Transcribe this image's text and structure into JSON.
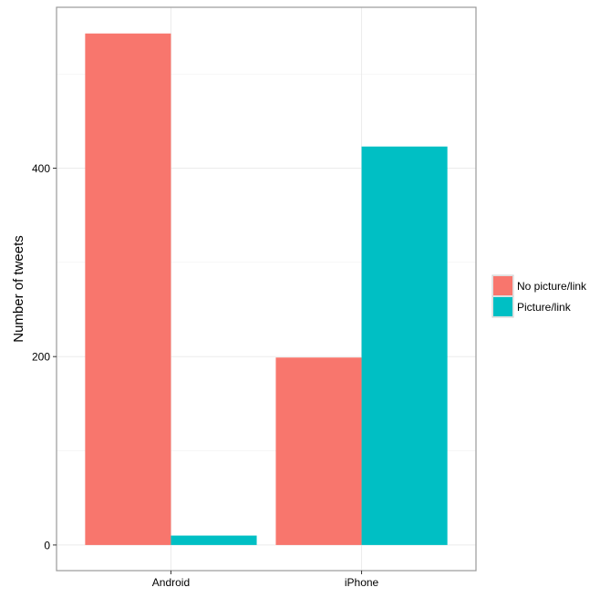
{
  "chart_data": {
    "type": "bar",
    "categories": [
      "Android",
      "iPhone"
    ],
    "series": [
      {
        "name": "No picture/link",
        "values": [
          543,
          199
        ],
        "color": "#F8766D"
      },
      {
        "name": "Picture/link",
        "values": [
          10,
          423
        ],
        "color": "#00BFC4"
      }
    ],
    "title": "",
    "xlabel": "",
    "ylabel": "Number of tweets",
    "ylim": [
      -27.2,
      570.8
    ],
    "yticks": [
      0,
      200,
      400
    ],
    "grid": true,
    "legend_position": "right"
  }
}
